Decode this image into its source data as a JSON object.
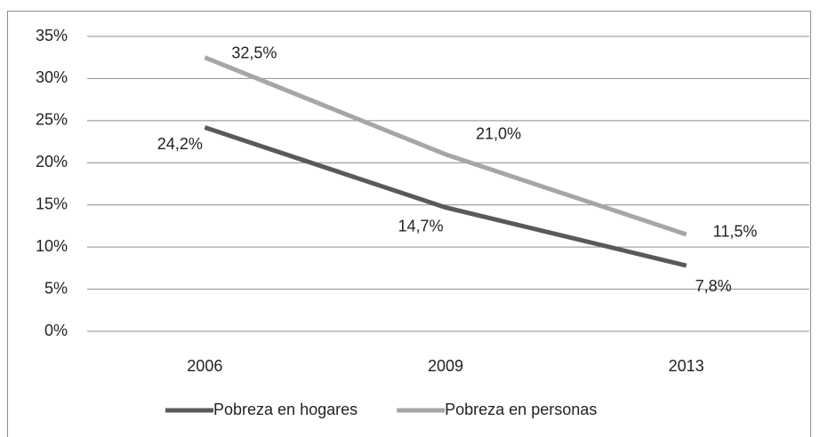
{
  "chart_data": {
    "type": "line",
    "categories": [
      "2006",
      "2009",
      "2013"
    ],
    "series": [
      {
        "name": "Pobreza en hogares",
        "color": "#595959",
        "values": [
          24.2,
          14.7,
          7.8
        ],
        "value_labels": [
          "24,2%",
          "14,7%",
          "7,8%"
        ]
      },
      {
        "name": "Pobreza en personas",
        "color": "#a6a6a6",
        "values": [
          32.5,
          21.0,
          11.5
        ],
        "value_labels": [
          "32,5%",
          "21,0%",
          "11,5%"
        ]
      }
    ],
    "ylim": [
      0,
      35
    ],
    "yticks": [
      {
        "value": 0,
        "label": "0%"
      },
      {
        "value": 5,
        "label": "5%"
      },
      {
        "value": 10,
        "label": "10%"
      },
      {
        "value": 15,
        "label": "15%"
      },
      {
        "value": 20,
        "label": "20%"
      },
      {
        "value": 25,
        "label": "25%"
      },
      {
        "value": 30,
        "label": "30%"
      },
      {
        "value": 35,
        "label": "35%"
      }
    ],
    "grid": true,
    "legend": "bottom"
  }
}
